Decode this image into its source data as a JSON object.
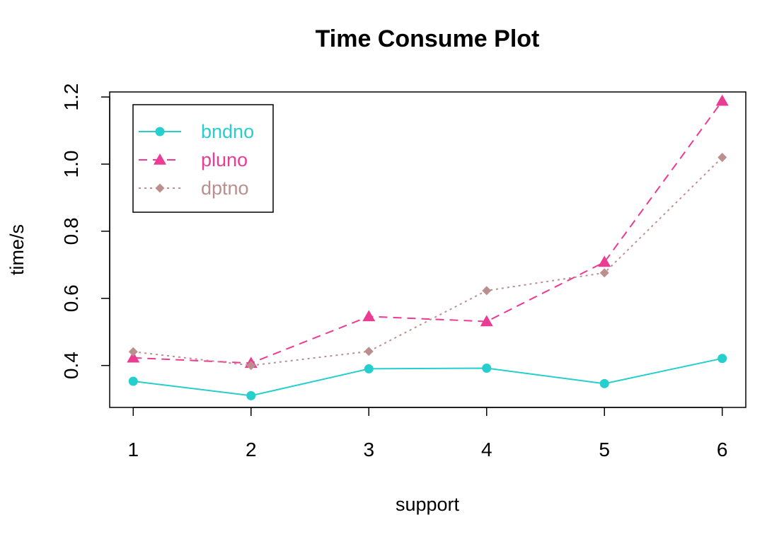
{
  "chart_data": {
    "type": "line",
    "title": "Time Consume Plot",
    "xlabel": "support",
    "ylabel": "time/s",
    "x": [
      1,
      2,
      3,
      4,
      5,
      6
    ],
    "xlim": [
      0.8,
      6.2
    ],
    "ylim": [
      0.275,
      1.215
    ],
    "y_ticks": [
      "0.4",
      "0.6",
      "0.8",
      "1.0",
      "1.2"
    ],
    "x_ticks": [
      "1",
      "2",
      "3",
      "4",
      "5",
      "6"
    ],
    "grid": false,
    "legend_position": "top-left",
    "series": [
      {
        "name": "bndno",
        "values": [
          0.353,
          0.31,
          0.39,
          0.392,
          0.346,
          0.421
        ],
        "color": "#26CECE",
        "line_style": "solid",
        "marker": "circle"
      },
      {
        "name": "pluno",
        "values": [
          0.423,
          0.407,
          0.546,
          0.531,
          0.708,
          1.188
        ],
        "color": "#EC3B93",
        "line_style": "dashed",
        "marker": "triangle"
      },
      {
        "name": "dptno",
        "values": [
          0.441,
          0.4,
          0.442,
          0.623,
          0.676,
          1.02
        ],
        "color": "#BC8F8F",
        "line_style": "dotted",
        "marker": "diamond"
      }
    ]
  }
}
